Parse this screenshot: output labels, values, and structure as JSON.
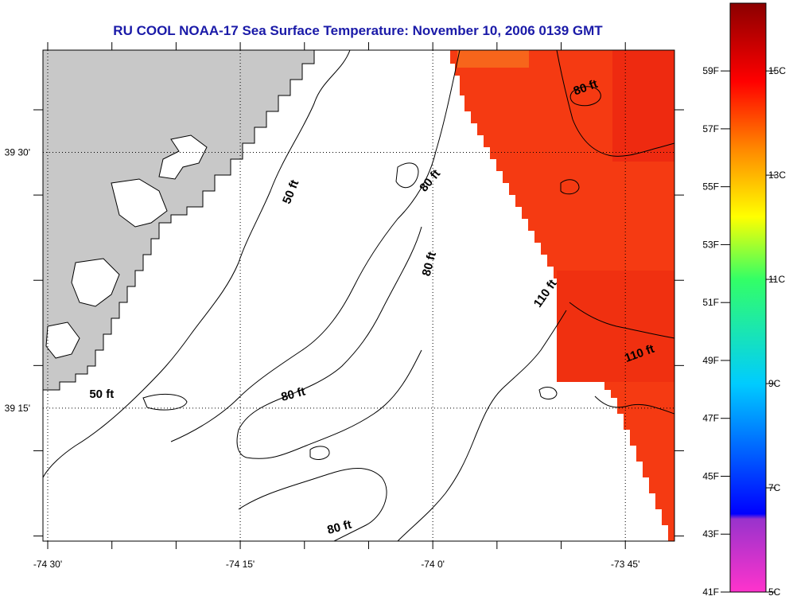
{
  "title": "RU COOL  NOAA-17  Sea Surface Temperature:  November 10, 2006 0139 GMT",
  "map": {
    "lon_range": [
      -74.5,
      -73.68
    ],
    "lat_range": [
      39.12,
      39.6
    ],
    "lon_ticks": [
      {
        "value": -74.5,
        "label": "-74 30'"
      },
      {
        "value": -74.25,
        "label": "-74 15'"
      },
      {
        "value": -74.0,
        "label": "-74 0'"
      },
      {
        "value": -73.75,
        "label": "-73 45'"
      }
    ],
    "lat_ticks": [
      {
        "value": 39.5,
        "label": "39 30'"
      },
      {
        "value": 39.25,
        "label": "39 15'"
      }
    ],
    "grid": "dotted",
    "land_color": "#c8c8c8",
    "sst_color": "#f53a12",
    "contour_labels": [
      {
        "text": "50 ft",
        "lon": -74.18,
        "lat": 39.46,
        "angle": -68
      },
      {
        "text": "80 ft",
        "lon": -74.0,
        "lat": 39.47,
        "angle": -50
      },
      {
        "text": "80 ft",
        "lon": -74.0,
        "lat": 39.39,
        "angle": -75
      },
      {
        "text": "80 ft",
        "lon": -73.8,
        "lat": 39.56,
        "angle": -20
      },
      {
        "text": "110 ft",
        "lon": -73.85,
        "lat": 39.36,
        "angle": -55
      },
      {
        "text": "110 ft",
        "lon": -73.73,
        "lat": 39.3,
        "angle": -20
      },
      {
        "text": "50 ft",
        "lon": -74.43,
        "lat": 39.26,
        "angle": 0
      },
      {
        "text": "80 ft",
        "lon": -74.18,
        "lat": 39.26,
        "angle": -15
      },
      {
        "text": "80 ft",
        "lon": -74.12,
        "lat": 39.13,
        "angle": -15
      }
    ]
  },
  "colorbar": {
    "range_c": [
      5,
      16.3
    ],
    "stops": [
      {
        "c": 5.0,
        "color": "#ff33cc"
      },
      {
        "c": 6.4,
        "color": "#9933cc"
      },
      {
        "c": 6.5,
        "color": "#0000ff"
      },
      {
        "c": 9.0,
        "color": "#00ccff"
      },
      {
        "c": 11.0,
        "color": "#33ff66"
      },
      {
        "c": 12.2,
        "color": "#ffff00"
      },
      {
        "c": 13.5,
        "color": "#ff8800"
      },
      {
        "c": 14.8,
        "color": "#ff0000"
      },
      {
        "c": 16.3,
        "color": "#8b0000"
      }
    ],
    "fahrenheit_labels": [
      "41F",
      "43F",
      "45F",
      "47F",
      "49F",
      "51F",
      "53F",
      "55F",
      "57F",
      "59F"
    ],
    "celsius_labels": [
      "5C",
      "7C",
      "9C",
      "11C",
      "13C",
      "15C"
    ]
  }
}
